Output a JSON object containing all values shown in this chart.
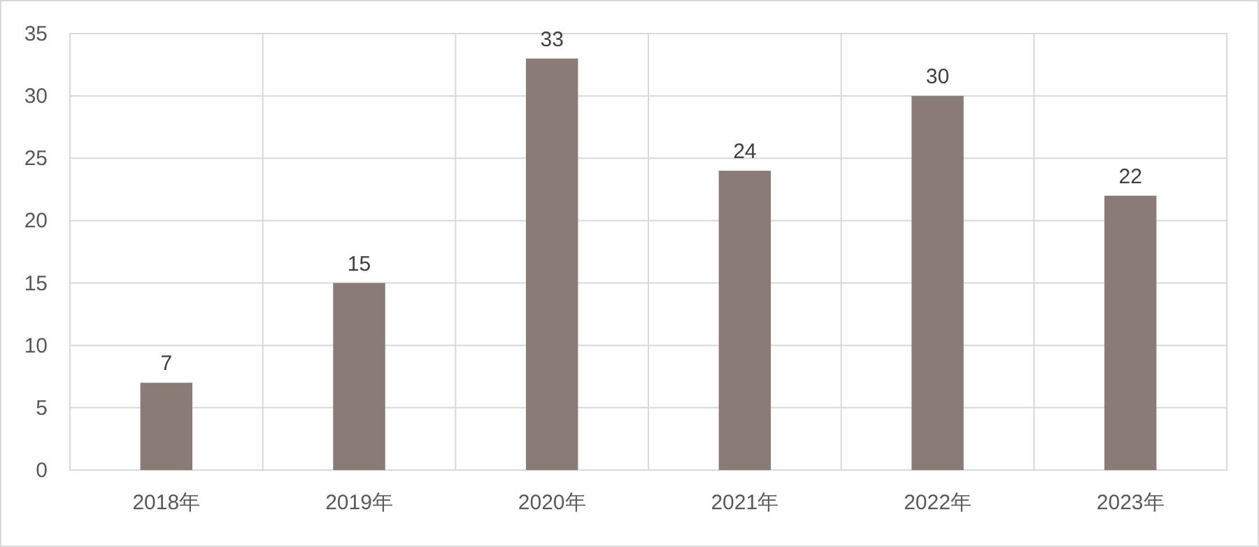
{
  "chart_data": {
    "type": "bar",
    "categories": [
      "2018年",
      "2019年",
      "2020年",
      "2021年",
      "2022年",
      "2023年"
    ],
    "values": [
      7,
      15,
      33,
      24,
      30,
      22
    ],
    "color": "#8b7b77",
    "ylim": [
      0,
      35
    ],
    "yticks": [
      0,
      5,
      10,
      15,
      20,
      25,
      30,
      35
    ],
    "grid": true,
    "data_labels": true
  }
}
